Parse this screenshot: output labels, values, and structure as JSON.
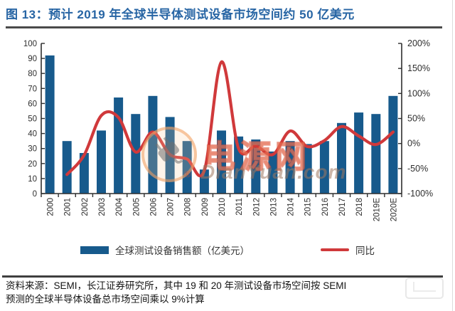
{
  "page": {
    "title": "图 13：预计 2019 年全球半导体测试设备市场空间约 50 亿美元",
    "source_note": {
      "line1": "资料来源：SEMI，长江证券研究所，其中 19 和 20 年测试设备市场空间按 SEMI",
      "line2": "预测的全球半导体设备总市场空间乘以 9%计算"
    }
  },
  "chart_data": {
    "type": "bar+line",
    "title": "预计 2019 年全球半导体测试设备市场空间约 50 亿美元",
    "categories": [
      "2000",
      "2001",
      "2002",
      "2003",
      "2004",
      "2005",
      "2006",
      "2007",
      "2008",
      "2009",
      "2010",
      "2011",
      "2012",
      "2013",
      "2014",
      "2015",
      "2016",
      "2017",
      "2018",
      "2019E",
      "2020E"
    ],
    "series": [
      {
        "name": "全球测试设备销售额（亿美元）",
        "type": "bar",
        "axis": "left",
        "color": "#175A8C",
        "values": [
          92,
          35,
          27,
          42,
          64,
          53,
          65,
          51,
          35,
          16,
          42,
          38,
          36,
          28,
          35,
          33,
          35,
          47,
          54,
          53,
          65
        ]
      },
      {
        "name": "同比",
        "type": "line",
        "axis": "right",
        "color": "#D0393B",
        "unit": "%",
        "values": [
          null,
          -62,
          -23,
          56,
          52,
          -17,
          23,
          -22,
          -31,
          -54,
          163,
          -10,
          -5,
          -22,
          25,
          -6,
          6,
          34,
          15,
          -2,
          23
        ]
      }
    ],
    "left_axis": {
      "min": 0,
      "max": 100,
      "step": 10,
      "tick_labels": [
        "0",
        "10",
        "20",
        "30",
        "40",
        "50",
        "60",
        "70",
        "80",
        "90",
        "100"
      ]
    },
    "right_axis": {
      "min": -100,
      "max": 200,
      "step": 50,
      "tick_labels": [
        "-100%",
        "-50%",
        "0%",
        "50%",
        "100%",
        "150%",
        "200%"
      ]
    },
    "grid": "off",
    "legend_position": "bottom",
    "x_label_rotation": -90
  },
  "watermark": {
    "brand": "电源网",
    "registered_mark": "®",
    "domain": "DianYuan.com"
  },
  "colors": {
    "title_blue": "#2765A4",
    "bar_blue": "#175A8C",
    "line_red": "#D0393B",
    "rule_dark": "#4a4a4a",
    "axis_gray": "#2e2e2e",
    "watermark_orange": "#E8683F"
  }
}
